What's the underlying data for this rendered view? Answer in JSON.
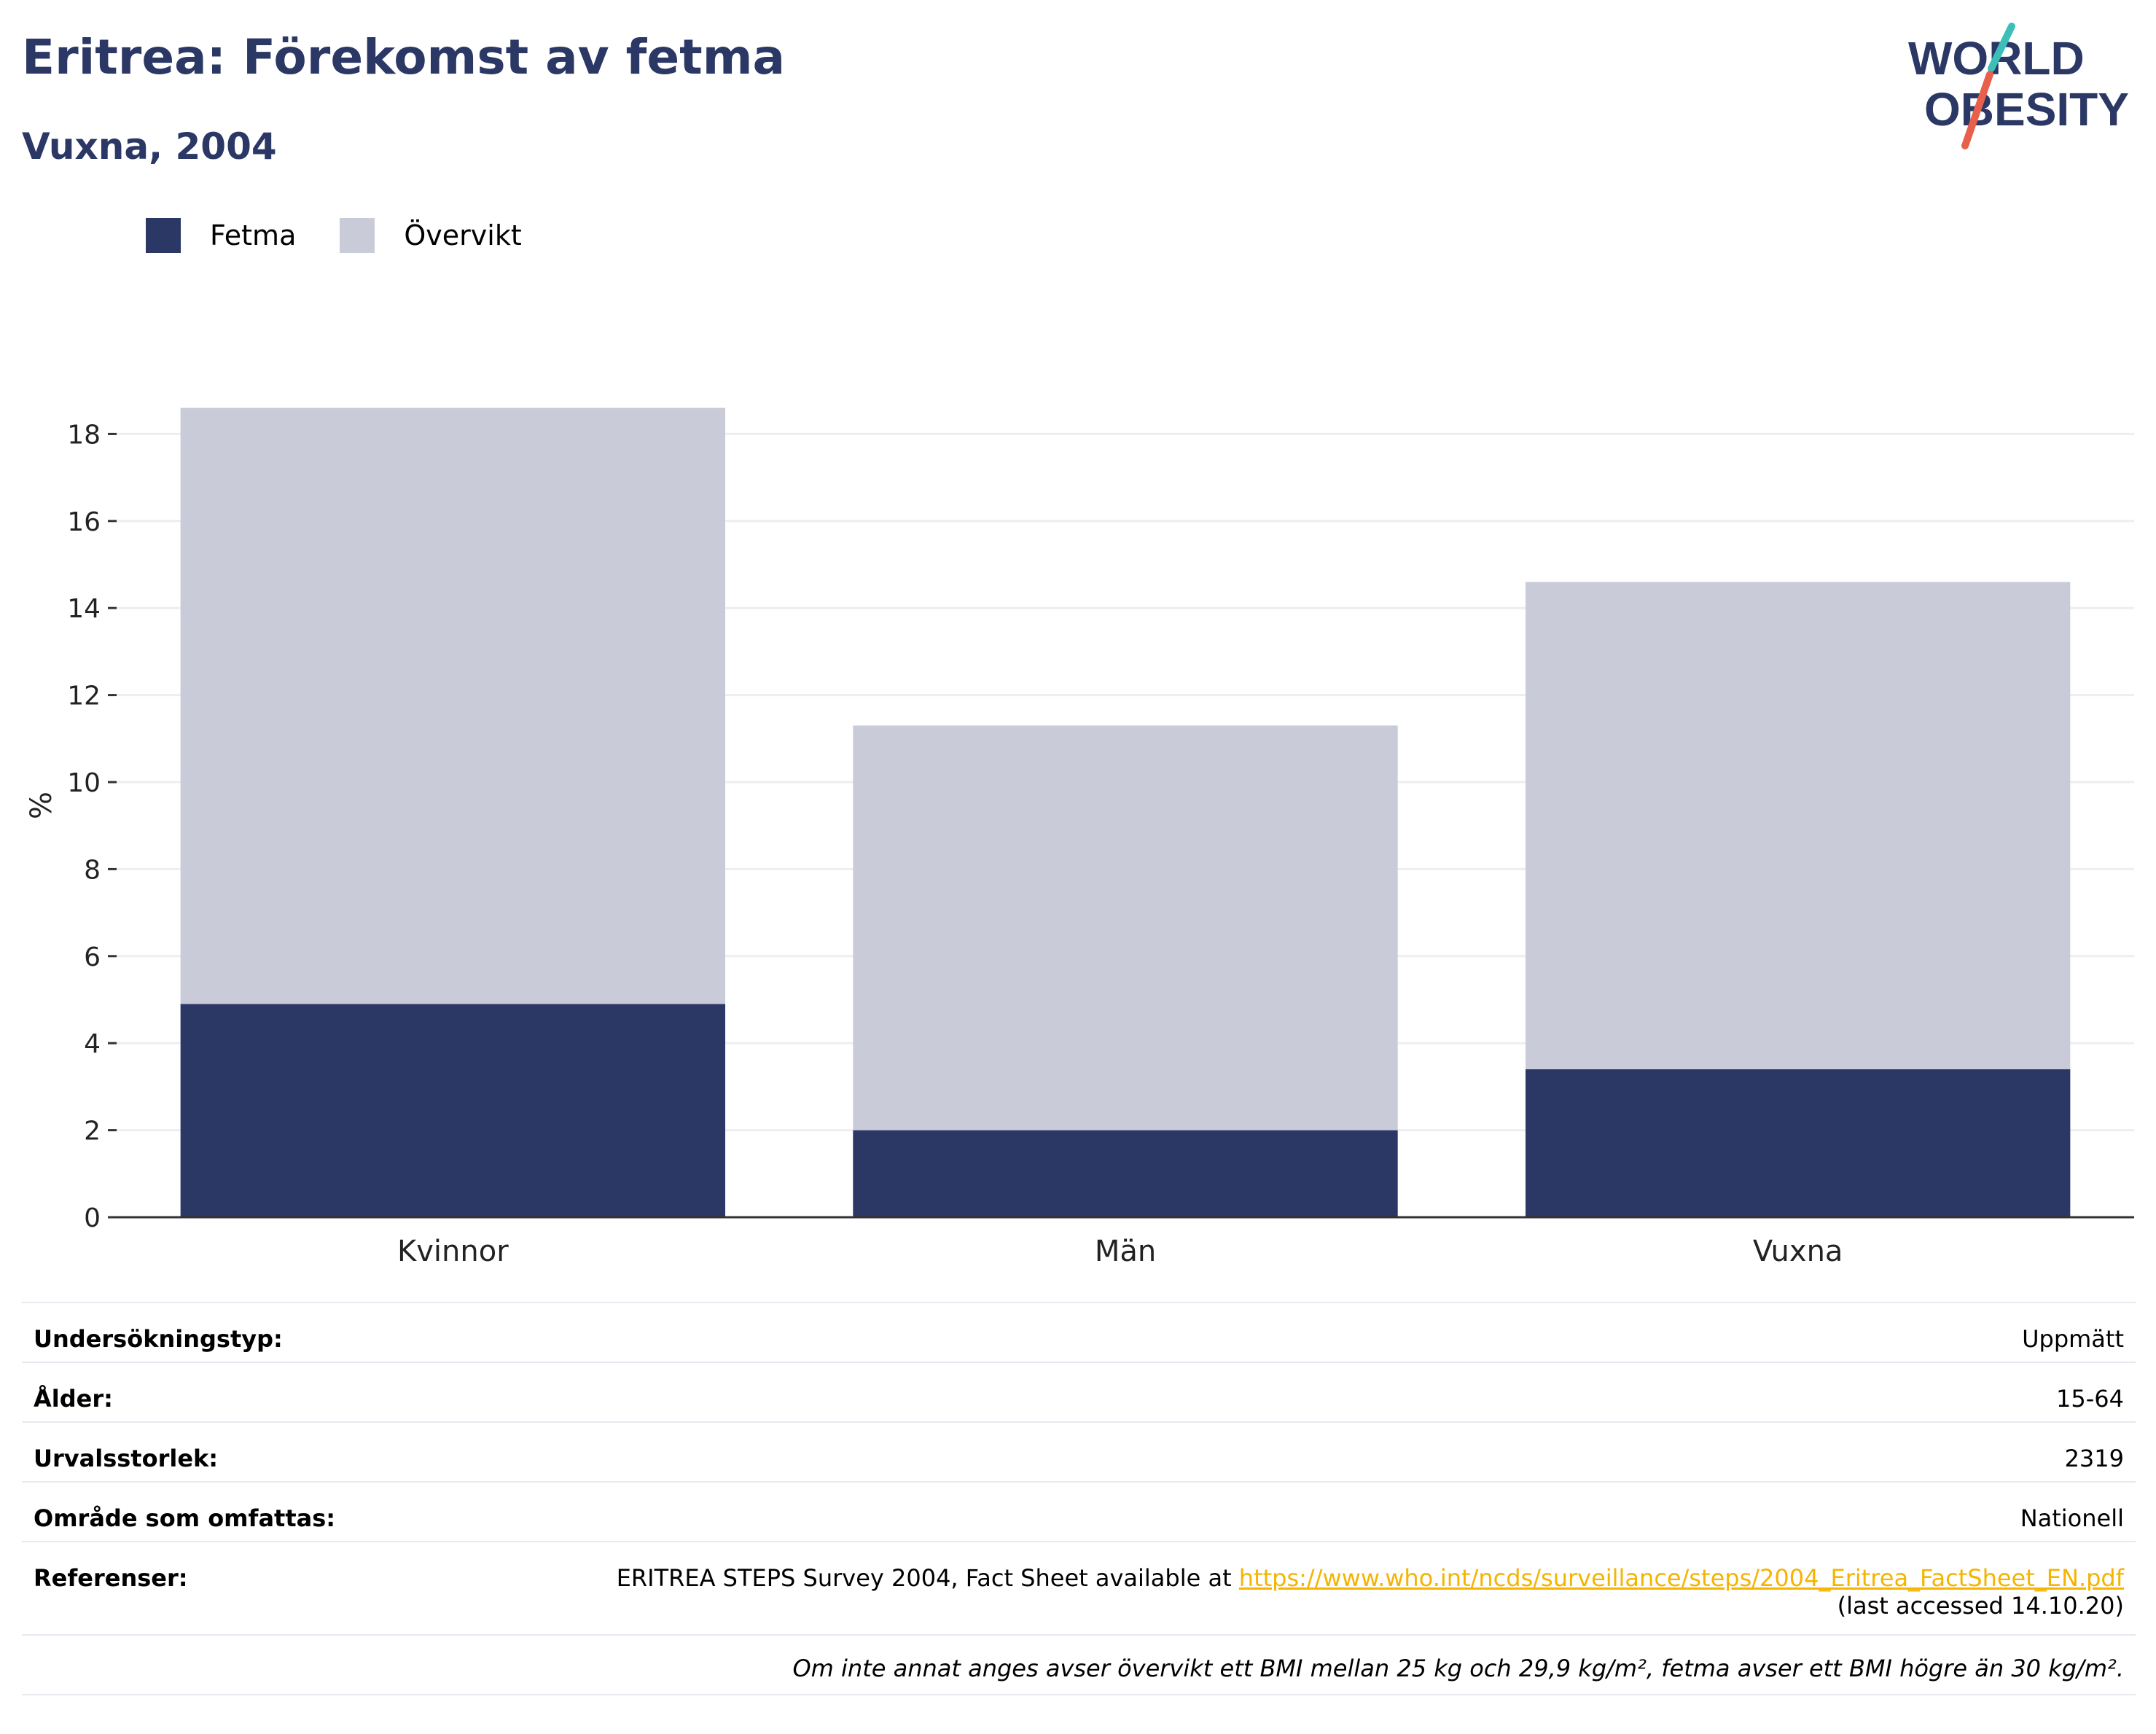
{
  "title": "Eritrea: Förekomst av fetma",
  "subtitle": "Vuxna, 2004",
  "logo": {
    "line1": "WORLD",
    "line2": "OBESITY",
    "colors": [
      "#2b3764",
      "#3bbfb8",
      "#e8604c"
    ]
  },
  "chart_data": {
    "type": "bar",
    "stacked": true,
    "categories": [
      "Kvinnor",
      "Män",
      "Vuxna"
    ],
    "series": [
      {
        "name": "Fetma",
        "values": [
          4.9,
          2.0,
          3.4
        ],
        "color": "#2b3764"
      },
      {
        "name": "Övervikt",
        "values": [
          13.7,
          9.3,
          11.2
        ],
        "color": "#c9ccd8"
      }
    ],
    "ylabel": "%",
    "ylim": [
      0,
      18.6
    ],
    "yticks": [
      0,
      2,
      4,
      6,
      8,
      10,
      12,
      14,
      16,
      18
    ],
    "grid": true,
    "legend": "top-left"
  },
  "meta": {
    "rows": [
      {
        "key": "Undersökningstyp:",
        "value": "Uppmätt"
      },
      {
        "key": "Ålder:",
        "value": "15-64"
      },
      {
        "key": "Urvalsstorlek:",
        "value": "2319"
      },
      {
        "key": "Område som omfattas:",
        "value": "Nationell"
      }
    ],
    "references": {
      "key": "Referenser:",
      "text": "ERITREA STEPS Survey 2004, Fact Sheet available at",
      "link": "https://www.who.int/ncds/surveillance/steps/2004_Eritrea_FactSheet_EN.pdf",
      "accessed": "(last accessed 14.10.20)"
    },
    "note": "Om inte annat anges avser övervikt ett BMI mellan 25 kg och 29,9 kg/m², fetma avser ett BMI högre än 30 kg/m²."
  }
}
